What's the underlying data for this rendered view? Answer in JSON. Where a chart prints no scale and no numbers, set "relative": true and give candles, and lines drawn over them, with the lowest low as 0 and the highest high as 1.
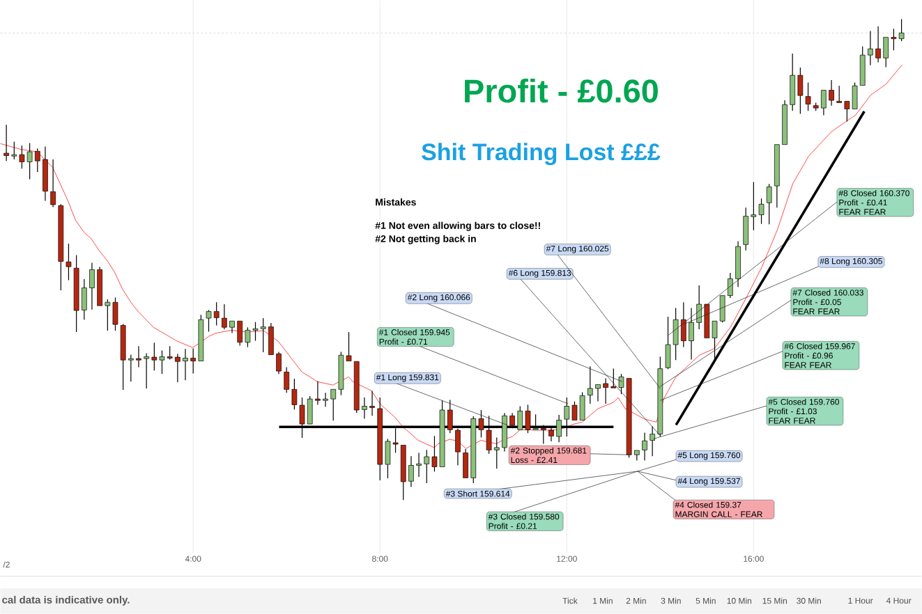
{
  "chart_data": {
    "type": "candlestick",
    "title": "Profit - £0.60",
    "subtitle": "Shit Trading Lost £££",
    "relative": true,
    "tick_labels": "x",
    "grid": "x",
    "xlim": [
      -0.13,
      19.6
    ],
    "xticks": [
      {
        "value": 4,
        "label": "4:00"
      },
      {
        "value": 8,
        "label": "8:00"
      },
      {
        "value": 12,
        "label": "12:00"
      },
      {
        "value": 16,
        "label": "16:00"
      }
    ],
    "colors": [
      "#b5270f",
      "#8cc17a",
      "#b5270f",
      "#8cc17a",
      "#b5270f",
      "#b5270f",
      "#b5270f",
      "#b5270f",
      "#b5270f",
      "#b5270f",
      "#8cc17a",
      "#8cc17a",
      "#b5270f",
      "#8cc17a",
      "#b5270f",
      "#b5270f",
      "#8cc17a",
      "#b5270f",
      "#8cc17a",
      "#b5270f",
      "#8cc17a",
      "#b5270f",
      "#b5270f",
      "#8cc17a",
      "#b5270f",
      "#8cc17a",
      "#8cc17a",
      "#b5270f",
      "#b5270f",
      "#8cc17a",
      "#b5270f",
      "#8cc17a",
      "#8cc17a",
      "#8cc17a",
      "#b5270f",
      "#b5270f",
      "#b5270f",
      "#b5270f",
      "#b5270f",
      "#8cc17a",
      "#b5270f",
      "#8cc17a",
      "#8cc17a",
      "#8cc17a",
      "#b5270f",
      "#b5270f",
      "#8cc17a",
      "#b5270f",
      "#b5270f",
      "#8cc17a",
      "#b5270f",
      "#b5270f",
      "#8cc17a",
      "#8cc17a",
      "#8cc17a",
      "#b5270f",
      "#8cc17a",
      "#b5270f",
      "#b5270f",
      "#b5270f",
      "#8cc17a",
      "#b5270f",
      "#b5270f",
      "#8cc17a",
      "#8cc17a",
      "#b5270f",
      "#8cc17a",
      "#b5270f",
      "#8cc17a",
      "#b5270f",
      "#b5270f",
      "#8cc17a",
      "#8cc17a",
      "#b5270f",
      "#8cc17a",
      "#8cc17a",
      "#8cc17a",
      "#b5270f",
      "#b5270f",
      "#8cc17a",
      "#b5270f",
      "#8cc17a",
      "#8cc17a",
      "#8cc17a",
      "#8cc17a",
      "#8cc17a",
      "#8cc17a",
      "#b5270f",
      "#8cc17a",
      "#8cc17a",
      "#b5270f",
      "#8cc17a",
      "#8cc17a",
      "#8cc17a",
      "#8cc17a",
      "#8cc17a",
      "#8cc17a",
      "#8cc17a",
      "#8cc17a",
      "#8cc17a",
      "#8cc17a",
      "#8cc17a",
      "#b5270f",
      "#b5270f",
      "#b5270f",
      "#8cc17a",
      "#b5270f",
      "#b5270f",
      "#b5270f",
      "#8cc17a",
      "#8cc17a",
      "#8cc17a",
      "#b5270f",
      "#8cc17a",
      "#b5270f",
      "#8cc17a"
    ],
    "x": [
      0,
      0.167,
      0.333,
      0.5,
      0.667,
      0.833,
      1,
      1.167,
      1.333,
      1.5,
      1.667,
      1.833,
      2,
      2.167,
      2.333,
      2.5,
      2.667,
      2.833,
      3,
      3.167,
      3.333,
      3.5,
      3.667,
      3.833,
      4,
      4.167,
      4.333,
      4.5,
      4.667,
      4.833,
      5,
      5.167,
      5.333,
      5.5,
      5.667,
      5.833,
      6,
      6.167,
      6.333,
      6.5,
      6.667,
      6.833,
      7,
      7.167,
      7.333,
      7.5,
      7.667,
      7.833,
      8,
      8.167,
      8.333,
      8.5,
      8.667,
      8.833,
      9,
      9.167,
      9.333,
      9.5,
      9.667,
      9.833,
      10,
      10.167,
      10.333,
      10.5,
      10.667,
      10.833,
      11,
      11.167,
      11.333,
      11.5,
      11.667,
      11.833,
      12,
      12.167,
      12.333,
      12.5,
      12.667,
      12.833,
      13,
      13.167,
      13.333,
      13.5,
      13.667,
      13.833,
      14,
      14.167,
      14.333,
      14.5,
      14.667,
      14.833,
      15,
      15.167,
      15.333,
      15.5,
      15.667,
      15.833,
      16,
      16.167,
      16.333,
      16.5,
      16.667,
      16.833,
      17,
      17.167,
      17.333,
      17.5,
      17.667,
      17.833,
      18,
      18.167,
      18.333,
      18.5,
      18.667,
      18.833,
      19,
      19.167
    ],
    "ohlc": [
      [
        0.721,
        0.78,
        0.705,
        0.716
      ],
      [
        0.715,
        0.745,
        0.708,
        0.718
      ],
      [
        0.718,
        0.737,
        0.689,
        0.703
      ],
      [
        0.703,
        0.742,
        0.667,
        0.724
      ],
      [
        0.725,
        0.731,
        0.682,
        0.705
      ],
      [
        0.708,
        0.735,
        0.622,
        0.642
      ],
      [
        0.641,
        0.708,
        0.609,
        0.614
      ],
      [
        0.612,
        0.615,
        0.436,
        0.496
      ],
      [
        0.495,
        0.533,
        0.457,
        0.485
      ],
      [
        0.482,
        0.509,
        0.349,
        0.394
      ],
      [
        0.395,
        0.459,
        0.375,
        0.441
      ],
      [
        0.441,
        0.493,
        0.396,
        0.479
      ],
      [
        0.479,
        0.485,
        0.404,
        0.404
      ],
      [
        0.404,
        0.417,
        0.352,
        0.411
      ],
      [
        0.411,
        0.421,
        0.352,
        0.365
      ],
      [
        0.363,
        0.366,
        0.229,
        0.291
      ],
      [
        0.291,
        0.302,
        0.246,
        0.294
      ],
      [
        0.294,
        0.32,
        0.276,
        0.291
      ],
      [
        0.294,
        0.305,
        0.232,
        0.298
      ],
      [
        0.297,
        0.327,
        0.269,
        0.291
      ],
      [
        0.291,
        0.311,
        0.262,
        0.298
      ],
      [
        0.298,
        0.32,
        0.292,
        0.295
      ],
      [
        0.297,
        0.304,
        0.245,
        0.288
      ],
      [
        0.289,
        0.314,
        0.249,
        0.295
      ],
      [
        0.295,
        0.315,
        0.263,
        0.289
      ],
      [
        0.289,
        0.385,
        0.289,
        0.375
      ],
      [
        0.378,
        0.395,
        0.35,
        0.392
      ],
      [
        0.392,
        0.411,
        0.363,
        0.379
      ],
      [
        0.378,
        0.407,
        0.355,
        0.359
      ],
      [
        0.359,
        0.372,
        0.347,
        0.372
      ],
      [
        0.372,
        0.372,
        0.321,
        0.328
      ],
      [
        0.328,
        0.359,
        0.318,
        0.353
      ],
      [
        0.353,
        0.37,
        0.331,
        0.356
      ],
      [
        0.356,
        0.378,
        0.307,
        0.36
      ],
      [
        0.36,
        0.368,
        0.302,
        0.302
      ],
      [
        0.304,
        0.308,
        0.262,
        0.268
      ],
      [
        0.266,
        0.276,
        0.223,
        0.23
      ],
      [
        0.23,
        0.252,
        0.188,
        0.198
      ],
      [
        0.197,
        0.213,
        0.129,
        0.158
      ],
      [
        0.158,
        0.216,
        0.158,
        0.21
      ],
      [
        0.21,
        0.247,
        0.198,
        0.207
      ],
      [
        0.207,
        0.223,
        0.194,
        0.21
      ],
      [
        0.21,
        0.23,
        0.165,
        0.23
      ],
      [
        0.23,
        0.308,
        0.218,
        0.301
      ],
      [
        0.3,
        0.349,
        0.289,
        0.289
      ],
      [
        0.288,
        0.288,
        0.181,
        0.187
      ],
      [
        0.188,
        0.213,
        0.169,
        0.195
      ],
      [
        0.195,
        0.227,
        0.175,
        0.192
      ],
      [
        0.19,
        0.213,
        0.041,
        0.074
      ],
      [
        0.074,
        0.127,
        0.045,
        0.122
      ],
      [
        0.119,
        0.149,
        0.098,
        0.116
      ],
      [
        0.114,
        0.114,
        0,
        0.038
      ],
      [
        0.039,
        0.091,
        0.027,
        0.072
      ],
      [
        0.072,
        0.098,
        0.048,
        0.075
      ],
      [
        0.075,
        0.104,
        0.035,
        0.09
      ],
      [
        0.09,
        0.133,
        0.059,
        0.069
      ],
      [
        0.069,
        0.207,
        0.069,
        0.187
      ],
      [
        0.187,
        0.208,
        0.139,
        0.146
      ],
      [
        0.145,
        0.148,
        0.072,
        0.1
      ],
      [
        0.098,
        0.106,
        0.046,
        0.046
      ],
      [
        0.046,
        0.174,
        0.035,
        0.169
      ],
      [
        0.169,
        0.187,
        0.13,
        0.146
      ],
      [
        0.145,
        0.175,
        0.096,
        0.104
      ],
      [
        0.104,
        0.13,
        0.065,
        0.109
      ],
      [
        0.109,
        0.181,
        0.101,
        0.175
      ],
      [
        0.175,
        0.181,
        0.149,
        0.155
      ],
      [
        0.146,
        0.195,
        0.146,
        0.185
      ],
      [
        0.185,
        0.198,
        0.139,
        0.146
      ],
      [
        0.146,
        0.178,
        0.146,
        0.149
      ],
      [
        0.149,
        0.156,
        0.117,
        0.146
      ],
      [
        0.145,
        0.152,
        0.122,
        0.133
      ],
      [
        0.132,
        0.177,
        0.12,
        0.166
      ],
      [
        0.168,
        0.213,
        0.132,
        0.195
      ],
      [
        0.197,
        0.205,
        0.166,
        0.166
      ],
      [
        0.166,
        0.224,
        0.166,
        0.217
      ],
      [
        0.218,
        0.278,
        0.2,
        0.232
      ],
      [
        0.232,
        0.24,
        0.205,
        0.24
      ],
      [
        0.242,
        0.253,
        0.2,
        0.234
      ],
      [
        0.236,
        0.273,
        0.233,
        0.233
      ],
      [
        0.234,
        0.262,
        0.22,
        0.256
      ],
      [
        0.253,
        0.253,
        0.088,
        0.094
      ],
      [
        0.094,
        0.103,
        0.082,
        0.103
      ],
      [
        0.104,
        0.14,
        0.082,
        0.123
      ],
      [
        0.124,
        0.153,
        0.091,
        0.137
      ],
      [
        0.137,
        0.298,
        0.132,
        0.273
      ],
      [
        0.275,
        0.381,
        0.272,
        0.323
      ],
      [
        0.323,
        0.399,
        0.291,
        0.375
      ],
      [
        0.375,
        0.411,
        0.318,
        0.331
      ],
      [
        0.331,
        0.399,
        0.292,
        0.369
      ],
      [
        0.369,
        0.446,
        0.355,
        0.407
      ],
      [
        0.407,
        0.407,
        0.337,
        0.337
      ],
      [
        0.337,
        0.372,
        0.292,
        0.372
      ],
      [
        0.372,
        0.425,
        0.369,
        0.425
      ],
      [
        0.425,
        0.472,
        0.42,
        0.46
      ],
      [
        0.46,
        0.538,
        0.443,
        0.527
      ],
      [
        0.531,
        0.608,
        0.519,
        0.59
      ],
      [
        0.589,
        0.661,
        0.561,
        0.593
      ],
      [
        0.593,
        0.627,
        0.574,
        0.615
      ],
      [
        0.618,
        0.657,
        0.573,
        0.651
      ],
      [
        0.653,
        0.739,
        0.608,
        0.739
      ],
      [
        0.739,
        0.831,
        0.739,
        0.822
      ],
      [
        0.822,
        0.928,
        0.809,
        0.883
      ],
      [
        0.883,
        0.899,
        0.803,
        0.841
      ],
      [
        0.839,
        0.868,
        0.809,
        0.823
      ],
      [
        0.82,
        0.826,
        0.809,
        0.815
      ],
      [
        0.815,
        0.852,
        0.8,
        0.852
      ],
      [
        0.852,
        0.873,
        0.82,
        0.831
      ],
      [
        0.829,
        0.861,
        0.826,
        0.826
      ],
      [
        0.829,
        0.829,
        0.787,
        0.813
      ],
      [
        0.813,
        0.868,
        0.813,
        0.861
      ],
      [
        0.862,
        0.943,
        0.862,
        0.925
      ],
      [
        0.925,
        0.975,
        0.904,
        0.938
      ],
      [
        0.938,
        0.985,
        0.91,
        0.919
      ],
      [
        0.919,
        0.962,
        0.9,
        0.962
      ],
      [
        0.962,
        0.98,
        0.935,
        0.959
      ],
      [
        0.959,
        1,
        0.954,
        0.971
      ]
    ],
    "series": [
      {
        "type": "line",
        "color": "#ff2020",
        "x": [
          -0.13,
          0.31,
          0.66,
          0.82,
          0.99,
          1.31,
          1.48,
          1.66,
          1.82,
          1.99,
          2.15,
          2.31,
          2.49,
          2.66,
          2.82,
          3.15,
          3.66,
          3.99,
          4.15,
          4.33,
          4.49,
          4.82,
          5.15,
          5.51,
          5.82,
          6.33,
          6.66,
          6.99,
          7.33,
          7.42,
          7.82,
          8.0,
          8.33,
          8.49,
          8.82,
          9.16,
          9.25,
          9.49,
          9.66,
          9.84,
          10.16,
          10.49,
          10.66,
          10.84,
          11.0,
          11.49,
          11.84,
          12.16,
          12.33,
          12.67,
          13.0,
          13.1,
          13.25,
          13.67,
          13.92,
          14.08,
          14.33,
          14.84,
          15.16,
          15.51,
          15.84,
          16.18,
          16.51,
          16.84,
          17.18,
          17.67,
          18.01,
          18.18,
          18.51,
          18.84,
          19.18
        ],
        "values": [
          0.741,
          0.729,
          0.724,
          0.708,
          0.692,
          0.624,
          0.582,
          0.557,
          0.543,
          0.518,
          0.499,
          0.475,
          0.438,
          0.412,
          0.392,
          0.359,
          0.33,
          0.317,
          0.327,
          0.34,
          0.347,
          0.353,
          0.349,
          0.352,
          0.33,
          0.266,
          0.246,
          0.239,
          0.256,
          0.246,
          0.227,
          0.2,
          0.171,
          0.152,
          0.124,
          0.109,
          0.117,
          0.126,
          0.123,
          0.107,
          0.124,
          0.117,
          0.126,
          0.132,
          0.146,
          0.145,
          0.146,
          0.158,
          0.162,
          0.19,
          0.203,
          0.213,
          0.19,
          0.168,
          0.162,
          0.211,
          0.255,
          0.301,
          0.315,
          0.36,
          0.42,
          0.485,
          0.562,
          0.658,
          0.715,
          0.766,
          0.789,
          0.8,
          0.842,
          0.865,
          0.905
        ]
      },
      {
        "type": "line",
        "color": "#000000",
        "x": [
          5.84,
          13.0
        ],
        "values": [
          0.152,
          0.152
        ]
      },
      {
        "type": "line",
        "color": "#000000",
        "x": [
          14.34,
          18.37
        ],
        "values": [
          0.156,
          0.808
        ]
      }
    ],
    "ref_lines": [
      {
        "axis": "y",
        "value": 0.971,
        "color": "#c8d8c0",
        "line_style": "dashed"
      }
    ],
    "annotations": [
      "Mistakes",
      "#1  Not even allowing bars to close!!",
      "#2  Not getting back in",
      {
        "text": "#1 Closed 159.945 Profit - £0.71",
        "x": 12.03,
        "y": 0.2
      },
      {
        "text": "#1 Long 159.831",
        "x": 10.72,
        "y": 0.156
      },
      {
        "text": "#2 Long 160.066",
        "x": 13.19,
        "y": 0.246
      },
      {
        "text": "#6 Long 159.813",
        "x": 13.99,
        "y": 0.135
      },
      {
        "text": "#7 Long 160.025",
        "x": 14.0,
        "y": 0.232
      },
      {
        "text": "#2 Stopped 159.681 Loss - £2.41",
        "x": 13.33,
        "y": 0.094
      },
      "#3 Short 159.614",
      "#3 Closed 159.580 Profit - £0.21",
      "#5 Long 159.760",
      "#4 Long 159.537",
      "#4 Closed 159.37 MARGIN CALL - FEAR",
      {
        "text": "#5 Closed 159.760 Profit - £1.03 FEAR FEAR",
        "x": 13.85,
        "y": 0.127
      },
      {
        "text": "#6 Closed 159.967 Profit - £0.96 FEAR FEAR",
        "x": 14.0,
        "y": 0.207
      },
      {
        "text": "#7 Closed 160.033 Profit - £0.05 FEAR FEAR",
        "x": 14.0,
        "y": 0.236
      },
      {
        "text": "#8 Long 160.305",
        "x": 14.52,
        "y": 0.366
      },
      {
        "text": "#8 Closed 160.370 Profit - £0.41 FEAR FEAR",
        "x": 14.18,
        "y": 0.343
      },
      "cal data is indicative only.",
      "Tick",
      "1 Min",
      "2 Min",
      "3 Min",
      "5 Min",
      "10 Min",
      "15 Min",
      "30 Min",
      "1 Hour",
      "4 Hour",
      "/2"
    ]
  }
}
